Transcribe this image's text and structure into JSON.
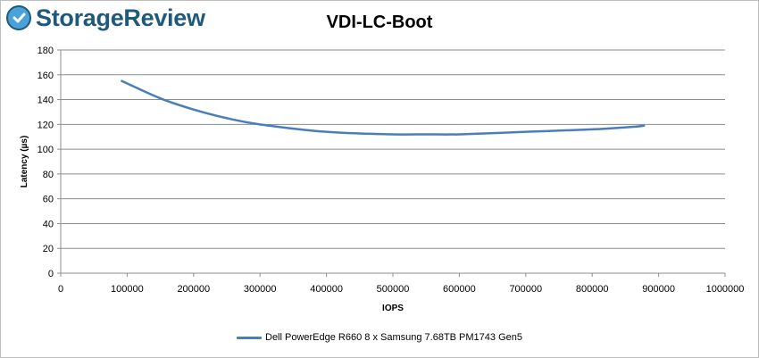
{
  "brand": {
    "name": "StorageReview",
    "icon": "storagereview-logo-icon",
    "color": "#1f5a7a"
  },
  "chart_data": {
    "type": "line",
    "title": "VDI-LC-Boot",
    "xlabel": "IOPS",
    "ylabel": "Latency (µs)",
    "xlim": [
      0,
      1000000
    ],
    "ylim": [
      0,
      180
    ],
    "xticks": [
      0,
      100000,
      200000,
      300000,
      400000,
      500000,
      600000,
      700000,
      800000,
      900000,
      1000000
    ],
    "yticks": [
      0,
      20,
      40,
      60,
      80,
      100,
      120,
      140,
      160,
      180
    ],
    "grid": true,
    "legend_position": "bottom",
    "series": [
      {
        "name": "Dell PowerEdge R660 8 x Samsung 7.68TB PM1743 Gen5",
        "color": "#4a7ebb",
        "x": [
          92000,
          150000,
          200000,
          250000,
          300000,
          400000,
          500000,
          550000,
          600000,
          700000,
          800000,
          860000,
          878000
        ],
        "y": [
          155,
          141,
          132,
          125,
          120,
          114,
          112,
          112,
          112,
          114,
          116,
          118,
          119
        ]
      }
    ]
  }
}
